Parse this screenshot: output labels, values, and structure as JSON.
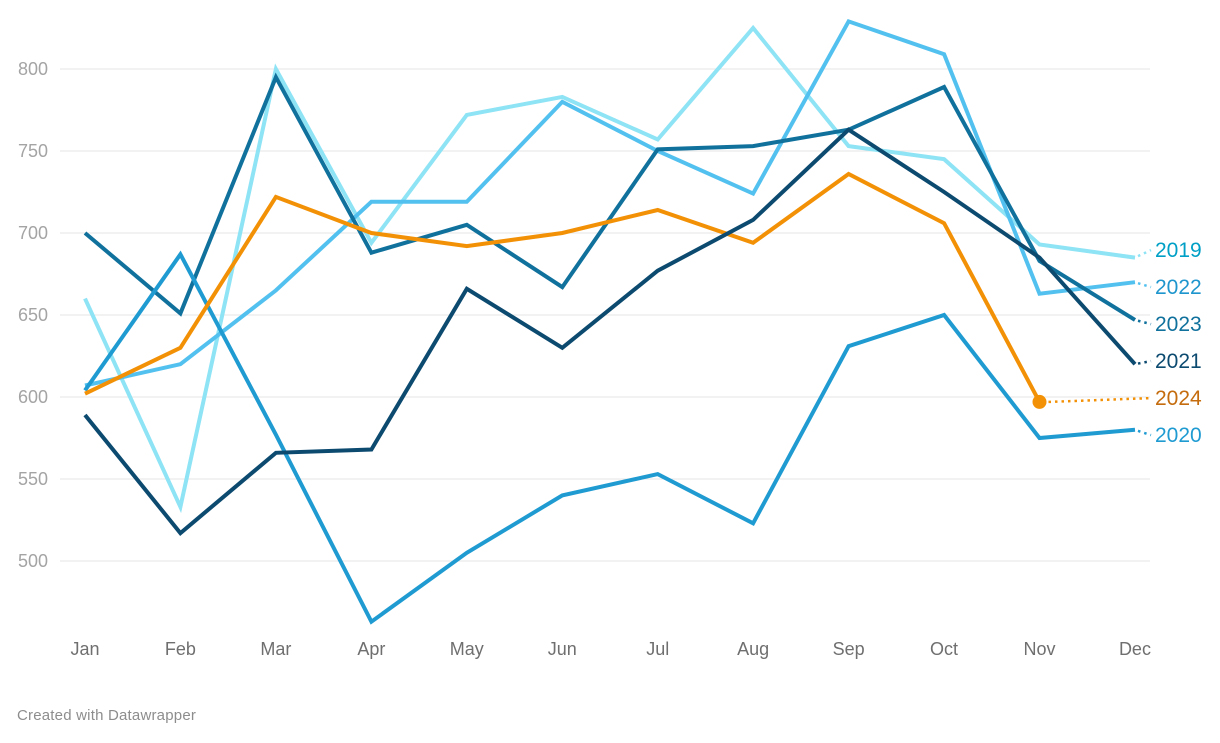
{
  "footer": {
    "credit": "Created with Datawrapper"
  },
  "chart_data": {
    "type": "line",
    "title": "",
    "xlabel": "",
    "ylabel": "",
    "categories": [
      "Jan",
      "Feb",
      "Mar",
      "Apr",
      "May",
      "Jun",
      "Jul",
      "Aug",
      "Sep",
      "Oct",
      "Nov",
      "Dec"
    ],
    "yticks": [
      500,
      550,
      600,
      650,
      700,
      750,
      800
    ],
    "ylim": [
      455,
      835
    ],
    "grid": true,
    "legend_position": "right-of-line-ends",
    "series": [
      {
        "name": "2019",
        "color": "#8ee3f5",
        "label_color": "#00a0c6",
        "values": [
          660,
          533,
          800,
          694,
          772,
          783,
          757,
          825,
          753,
          745,
          693,
          685
        ]
      },
      {
        "name": "2022",
        "color": "#53c1ef",
        "label_color": "#1e96cd",
        "values": [
          607,
          620,
          665,
          719,
          719,
          780,
          750,
          724,
          829,
          809,
          663,
          670
        ]
      },
      {
        "name": "2023",
        "color": "#10719d",
        "label_color": "#10719d",
        "values": [
          700,
          651,
          795,
          688,
          705,
          667,
          751,
          753,
          763,
          789,
          683,
          647
        ]
      },
      {
        "name": "2021",
        "color": "#0c4a70",
        "label_color": "#0c4a70",
        "values": [
          589,
          517,
          566,
          568,
          666,
          630,
          677,
          708,
          763,
          725,
          685,
          620
        ]
      },
      {
        "name": "2024",
        "color": "#f39106",
        "label_color": "#c46c0e",
        "end_marker": true,
        "dotted_to_label": true,
        "values": [
          602,
          630,
          722,
          700,
          692,
          700,
          714,
          694,
          736,
          706,
          597,
          null
        ]
      },
      {
        "name": "2020",
        "color": "#1f9bd2",
        "label_color": "#1f9bd2",
        "values": [
          604,
          687,
          577,
          463,
          505,
          540,
          553,
          523,
          631,
          650,
          575,
          580
        ]
      }
    ],
    "draw_order": [
      "2019",
      "2022",
      "2023",
      "2020",
      "2024",
      "2021"
    ]
  }
}
